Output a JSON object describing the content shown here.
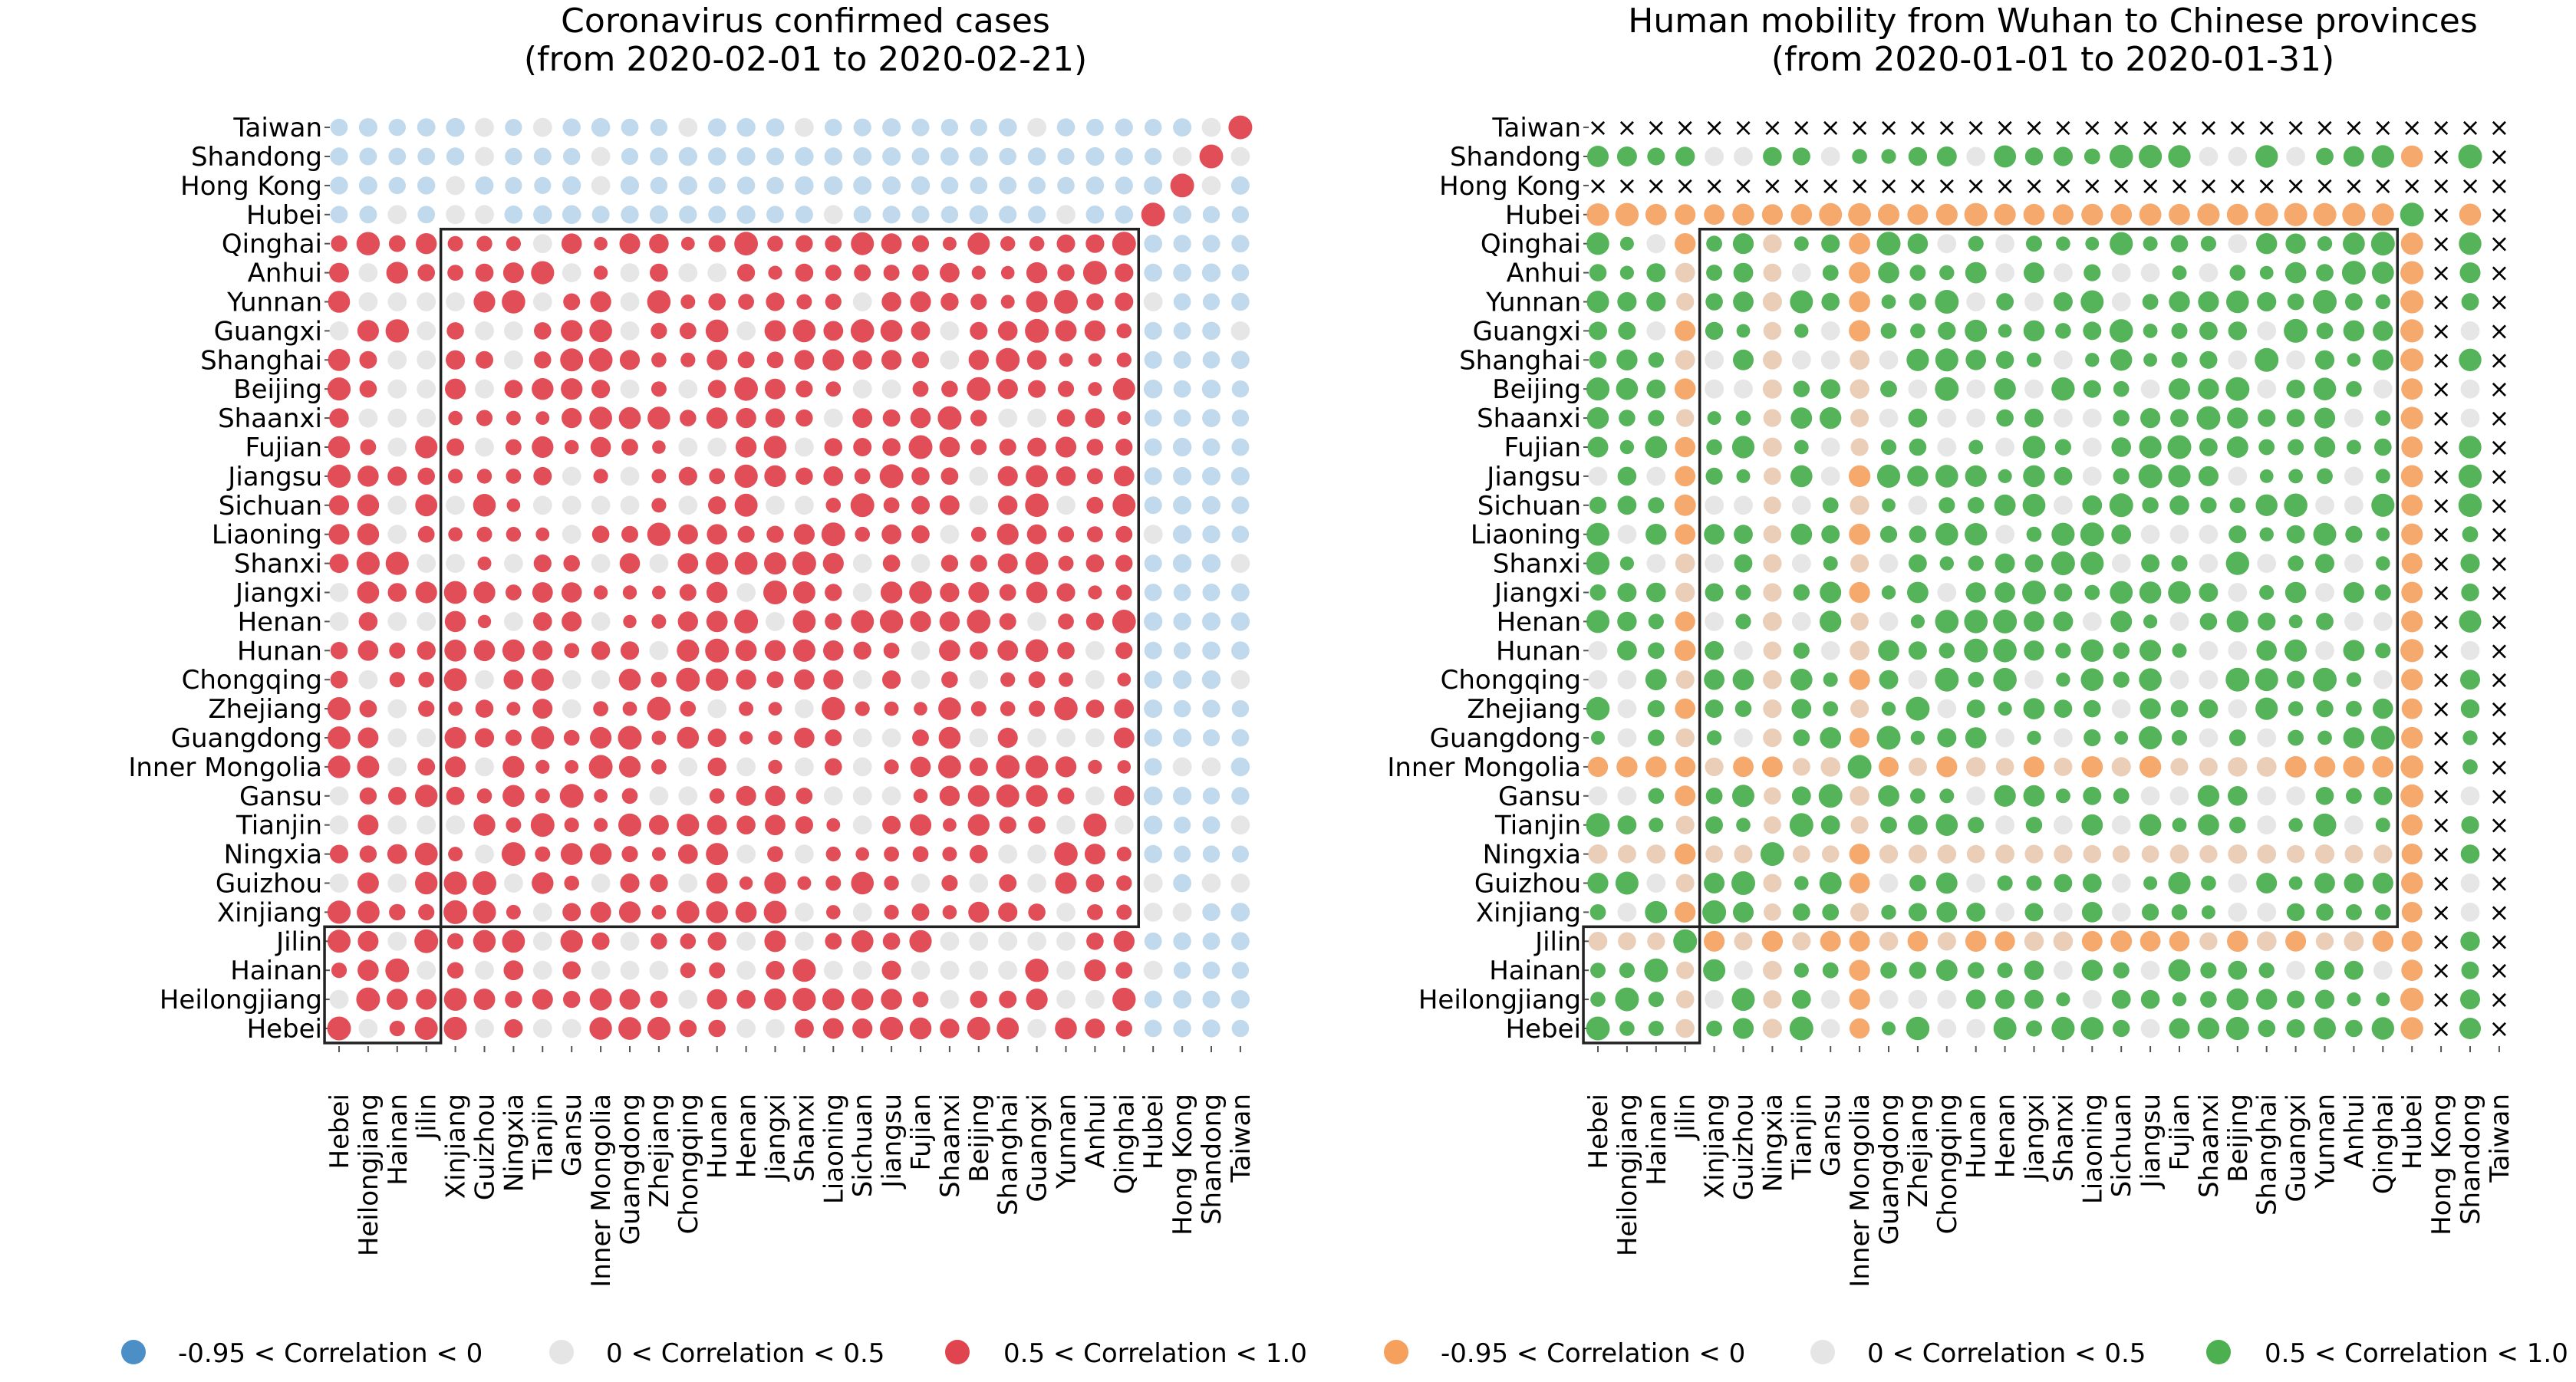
{
  "provinces": [
    "Hebei",
    "Heilongjiang",
    "Hainan",
    "Jilin",
    "Xinjiang",
    "Guizhou",
    "Ningxia",
    "Tianjin",
    "Gansu",
    "Inner Mongolia",
    "Guangdong",
    "Zhejiang",
    "Chongqing",
    "Hunan",
    "Henan",
    "Jiangxi",
    "Shanxi",
    "Liaoning",
    "Sichuan",
    "Jiangsu",
    "Fujian",
    "Shaanxi",
    "Beijing",
    "Shanghai",
    "Guangxi",
    "Yunnan",
    "Anhui",
    "Qinghai",
    "Hubei",
    "Hong Kong",
    "Shandong",
    "Taiwan"
  ],
  "chart_data": [
    {
      "type": "scatter",
      "subtype": "correlation-matrix",
      "title": "Coronavirus confirmed cases",
      "subtitle": "(from 2020-02-01 to 2020-02-21)",
      "colors": {
        "neg": "#4c8fc6",
        "negLight": "#b9d5ea",
        "low": "#e5e5e5",
        "high": "#e0454f"
      },
      "highlight_blocks": [
        {
          "from": "Hebei",
          "to": "Jilin"
        },
        {
          "from": "Xinjiang",
          "to": "Qinghai"
        }
      ],
      "legend": [
        {
          "label": "-0.95 < Correlation < 0",
          "color": "#4c8fc6"
        },
        {
          "label": "0 < Correlation < 0.5",
          "color": "#e5e5e5"
        },
        {
          "label": "0.5 < Correlation < 1.0",
          "color": "#e0454f"
        }
      ]
    },
    {
      "type": "scatter",
      "subtype": "correlation-matrix",
      "title": "Human mobility from Wuhan to Chinese provinces",
      "subtitle": "(from 2020-01-01 to 2020-01-31)",
      "colors": {
        "neg": "#f5a05c",
        "negLight": "#e8c9b0",
        "low": "#e5e5e5",
        "high": "#4caf50",
        "na": "#333333"
      },
      "missing_marker": "×",
      "missing_provinces": [
        "Hong Kong",
        "Taiwan"
      ],
      "highlight_blocks": [
        {
          "from": "Hebei",
          "to": "Jilin"
        },
        {
          "from": "Xinjiang",
          "to": "Qinghai"
        }
      ],
      "legend": [
        {
          "label": "-0.95 < Correlation < 0",
          "color": "#f5a05c"
        },
        {
          "label": "0 < Correlation < 0.5",
          "color": "#e5e5e5"
        },
        {
          "label": "0.5 < Correlation < 1.0",
          "color": "#4caf50"
        }
      ]
    }
  ]
}
